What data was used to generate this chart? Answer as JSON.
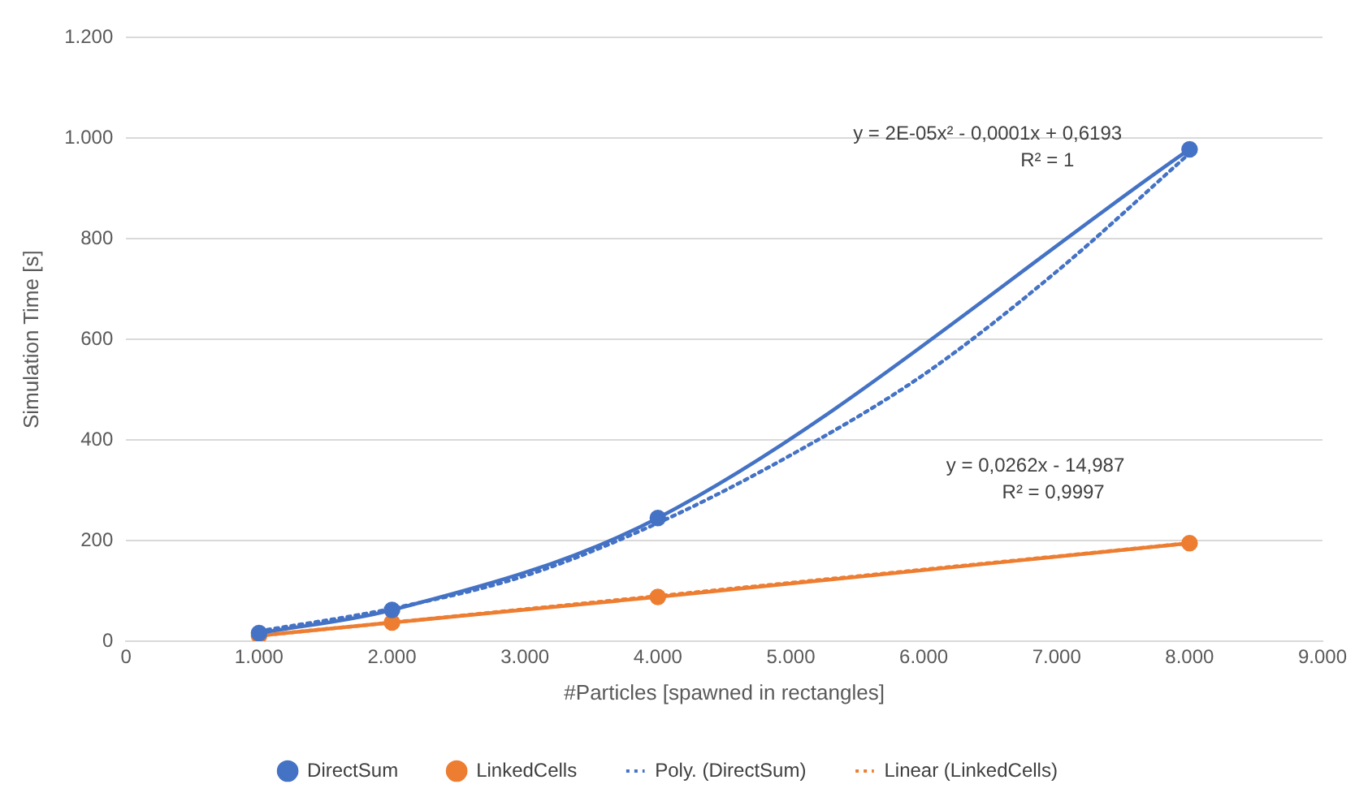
{
  "chart_data": {
    "type": "line",
    "xlabel": "#Particles [spawned in rectangles]",
    "ylabel": "Simulation Time [s]",
    "x": [
      1000,
      2000,
      4000,
      8000
    ],
    "series": [
      {
        "name": "DirectSum",
        "color": "#4472c4",
        "values": [
          16,
          62,
          245,
          978
        ],
        "marker": "circle",
        "line_style": "solid"
      },
      {
        "name": "LinkedCells",
        "color": "#ed7d31",
        "values": [
          11,
          37,
          88,
          195
        ],
        "marker": "circle",
        "line_style": "solid"
      },
      {
        "name": "Poly. (DirectSum)",
        "color": "#4472c4",
        "x": [
          1000,
          2000,
          3000,
          4000,
          5000,
          6000,
          7000,
          8000
        ],
        "values": [
          20,
          65,
          130,
          235,
          370,
          530,
          735,
          970
        ],
        "marker": "none",
        "line_style": "dotted"
      },
      {
        "name": "Linear (LinkedCells)",
        "color": "#ed7d31",
        "x": [
          1000,
          8000
        ],
        "values": [
          11,
          195
        ],
        "marker": "none",
        "line_style": "dotted"
      }
    ],
    "xlim": [
      0,
      9000
    ],
    "xticks": [
      0,
      {
        "value": 1000,
        "label": "1.000"
      },
      {
        "value": 2000,
        "label": "2.000"
      },
      {
        "value": 3000,
        "label": "3.000"
      },
      {
        "value": 4000,
        "label": "4.000"
      },
      {
        "value": 5000,
        "label": "5.000"
      },
      {
        "value": 6000,
        "label": "6.000"
      },
      {
        "value": 7000,
        "label": "7.000"
      },
      {
        "value": 8000,
        "label": "8.000"
      },
      {
        "value": 9000,
        "label": "9.000"
      }
    ],
    "ylim": [
      0,
      1200
    ],
    "yticks": [
      0,
      200,
      400,
      600,
      800,
      {
        "value": 1000,
        "label": "1.000"
      },
      {
        "value": 1200,
        "label": "1.200"
      }
    ],
    "grid": "y",
    "legend": "bottom",
    "annotations": [
      "y = 2E-05x² - 0,0001x + 0,6193",
      "R² = 1",
      "y = 0,0262x - 14,987",
      "R² = 0,9997"
    ]
  }
}
